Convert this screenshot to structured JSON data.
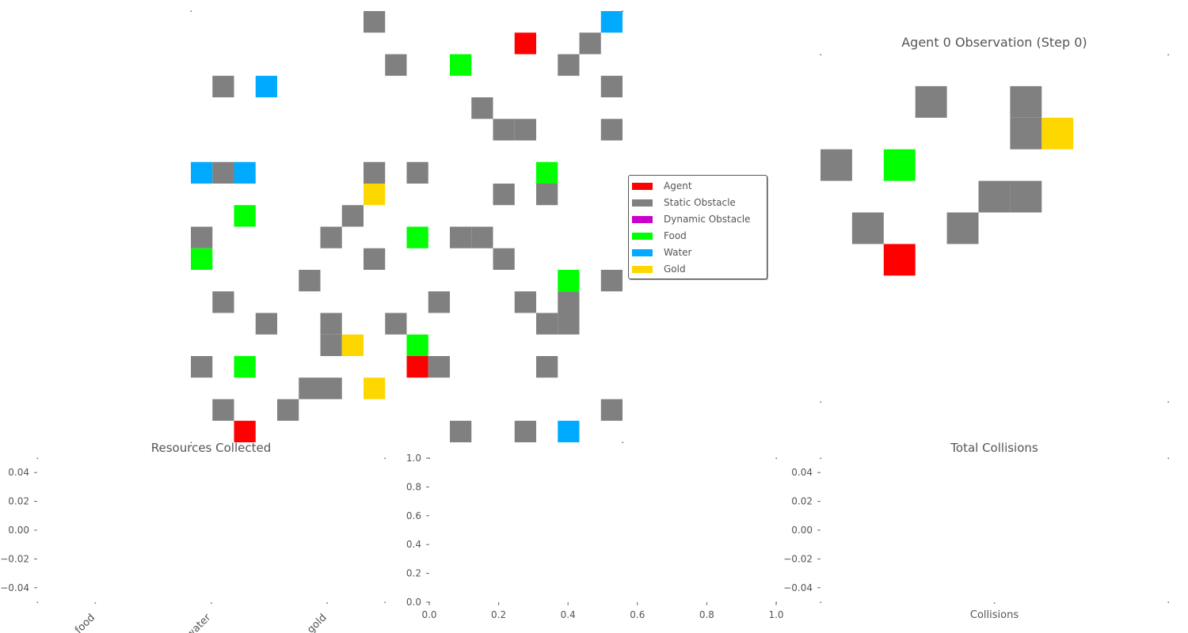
{
  "colors": {
    "agent": "#ff0000",
    "static_obstacle": "#808080",
    "dynamic_obstacle": "#cc00cc",
    "food": "#00ff00",
    "water": "#00aaff",
    "gold": "#ffd700",
    "text": "#555555",
    "tick": "#666666"
  },
  "legend": {
    "items": [
      {
        "label": "Agent",
        "color": "#ff0000"
      },
      {
        "label": "Static Obstacle",
        "color": "#808080"
      },
      {
        "label": "Dynamic Obstacle",
        "color": "#cc00cc"
      },
      {
        "label": "Food",
        "color": "#00ff00"
      },
      {
        "label": "Water",
        "color": "#00aaff"
      },
      {
        "label": "Gold",
        "color": "#ffd700"
      }
    ]
  },
  "chart_data": [
    {
      "type": "heatmap",
      "panel": "environment-grid",
      "title": "",
      "grid_size": [
        20,
        20
      ],
      "axes_visible": false,
      "cells": [
        {
          "r": 0,
          "c": 8,
          "k": "static_obstacle"
        },
        {
          "r": 0,
          "c": 19,
          "k": "water"
        },
        {
          "r": 1,
          "c": 15,
          "k": "agent"
        },
        {
          "r": 1,
          "c": 18,
          "k": "static_obstacle"
        },
        {
          "r": 2,
          "c": 9,
          "k": "static_obstacle"
        },
        {
          "r": 2,
          "c": 12,
          "k": "food"
        },
        {
          "r": 2,
          "c": 17,
          "k": "static_obstacle"
        },
        {
          "r": 3,
          "c": 1,
          "k": "static_obstacle"
        },
        {
          "r": 3,
          "c": 3,
          "k": "water"
        },
        {
          "r": 3,
          "c": 19,
          "k": "static_obstacle"
        },
        {
          "r": 4,
          "c": 13,
          "k": "static_obstacle"
        },
        {
          "r": 5,
          "c": 14,
          "k": "static_obstacle"
        },
        {
          "r": 5,
          "c": 15,
          "k": "static_obstacle"
        },
        {
          "r": 5,
          "c": 19,
          "k": "static_obstacle"
        },
        {
          "r": 7,
          "c": 0,
          "k": "water"
        },
        {
          "r": 7,
          "c": 1,
          "k": "static_obstacle"
        },
        {
          "r": 7,
          "c": 2,
          "k": "water"
        },
        {
          "r": 7,
          "c": 8,
          "k": "static_obstacle"
        },
        {
          "r": 7,
          "c": 10,
          "k": "static_obstacle"
        },
        {
          "r": 7,
          "c": 16,
          "k": "food"
        },
        {
          "r": 8,
          "c": 8,
          "k": "gold"
        },
        {
          "r": 8,
          "c": 14,
          "k": "static_obstacle"
        },
        {
          "r": 8,
          "c": 16,
          "k": "static_obstacle"
        },
        {
          "r": 9,
          "c": 2,
          "k": "food"
        },
        {
          "r": 9,
          "c": 7,
          "k": "static_obstacle"
        },
        {
          "r": 10,
          "c": 0,
          "k": "static_obstacle"
        },
        {
          "r": 10,
          "c": 6,
          "k": "static_obstacle"
        },
        {
          "r": 10,
          "c": 10,
          "k": "food"
        },
        {
          "r": 10,
          "c": 12,
          "k": "static_obstacle"
        },
        {
          "r": 10,
          "c": 13,
          "k": "static_obstacle"
        },
        {
          "r": 11,
          "c": 0,
          "k": "food"
        },
        {
          "r": 11,
          "c": 8,
          "k": "static_obstacle"
        },
        {
          "r": 11,
          "c": 14,
          "k": "static_obstacle"
        },
        {
          "r": 12,
          "c": 5,
          "k": "static_obstacle"
        },
        {
          "r": 12,
          "c": 17,
          "k": "food"
        },
        {
          "r": 12,
          "c": 19,
          "k": "static_obstacle"
        },
        {
          "r": 13,
          "c": 1,
          "k": "static_obstacle"
        },
        {
          "r": 13,
          "c": 11,
          "k": "static_obstacle"
        },
        {
          "r": 13,
          "c": 15,
          "k": "static_obstacle"
        },
        {
          "r": 13,
          "c": 17,
          "k": "static_obstacle"
        },
        {
          "r": 14,
          "c": 3,
          "k": "static_obstacle"
        },
        {
          "r": 14,
          "c": 6,
          "k": "static_obstacle"
        },
        {
          "r": 14,
          "c": 9,
          "k": "static_obstacle"
        },
        {
          "r": 14,
          "c": 16,
          "k": "static_obstacle"
        },
        {
          "r": 14,
          "c": 17,
          "k": "static_obstacle"
        },
        {
          "r": 15,
          "c": 6,
          "k": "static_obstacle"
        },
        {
          "r": 15,
          "c": 7,
          "k": "gold"
        },
        {
          "r": 15,
          "c": 10,
          "k": "food"
        },
        {
          "r": 16,
          "c": 0,
          "k": "static_obstacle"
        },
        {
          "r": 16,
          "c": 2,
          "k": "food"
        },
        {
          "r": 16,
          "c": 10,
          "k": "agent"
        },
        {
          "r": 16,
          "c": 11,
          "k": "static_obstacle"
        },
        {
          "r": 16,
          "c": 16,
          "k": "static_obstacle"
        },
        {
          "r": 17,
          "c": 5,
          "k": "static_obstacle"
        },
        {
          "r": 17,
          "c": 6,
          "k": "static_obstacle"
        },
        {
          "r": 17,
          "c": 8,
          "k": "gold"
        },
        {
          "r": 18,
          "c": 1,
          "k": "static_obstacle"
        },
        {
          "r": 18,
          "c": 4,
          "k": "static_obstacle"
        },
        {
          "r": 18,
          "c": 19,
          "k": "static_obstacle"
        },
        {
          "r": 19,
          "c": 2,
          "k": "agent"
        },
        {
          "r": 19,
          "c": 12,
          "k": "static_obstacle"
        },
        {
          "r": 19,
          "c": 15,
          "k": "static_obstacle"
        },
        {
          "r": 19,
          "c": 17,
          "k": "water"
        }
      ]
    },
    {
      "type": "heatmap",
      "panel": "agent-observation",
      "title": "Agent 0 Observation (Step 0)",
      "grid_size": [
        11,
        11
      ],
      "axes_visible": false,
      "cells": [
        {
          "r": 1,
          "c": 3,
          "k": "static_obstacle"
        },
        {
          "r": 1,
          "c": 6,
          "k": "static_obstacle"
        },
        {
          "r": 2,
          "c": 6,
          "k": "static_obstacle"
        },
        {
          "r": 2,
          "c": 7,
          "k": "gold"
        },
        {
          "r": 3,
          "c": 0,
          "k": "static_obstacle"
        },
        {
          "r": 3,
          "c": 2,
          "k": "food"
        },
        {
          "r": 4,
          "c": 5,
          "k": "static_obstacle"
        },
        {
          "r": 4,
          "c": 6,
          "k": "static_obstacle"
        },
        {
          "r": 5,
          "c": 1,
          "k": "static_obstacle"
        },
        {
          "r": 5,
          "c": 4,
          "k": "static_obstacle"
        },
        {
          "r": 6,
          "c": 2,
          "k": "agent"
        }
      ]
    },
    {
      "type": "bar",
      "panel": "resources-collected",
      "title": "Resources Collected",
      "categories": [
        "food",
        "water",
        "gold"
      ],
      "values": [
        0,
        0,
        0
      ],
      "ylim": [
        -0.05,
        0.05
      ],
      "yticks": [
        "0.04",
        "0.02",
        "0.00",
        "−0.02",
        "−0.04"
      ]
    },
    {
      "type": "line",
      "panel": "empty-axes",
      "title": "",
      "x": [],
      "y": [],
      "xlim": [
        0.0,
        1.0
      ],
      "ylim": [
        0.0,
        1.0
      ],
      "xticks": [
        "0.0",
        "0.2",
        "0.4",
        "0.6",
        "0.8",
        "1.0"
      ],
      "yticks": [
        "0.0",
        "0.2",
        "0.4",
        "0.6",
        "0.8",
        "1.0"
      ]
    },
    {
      "type": "bar",
      "panel": "total-collisions",
      "title": "Total Collisions",
      "categories": [
        "Collisions"
      ],
      "values": [
        0
      ],
      "ylim": [
        -0.05,
        0.05
      ],
      "yticks": [
        "0.04",
        "0.02",
        "0.00",
        "−0.02",
        "−0.04"
      ]
    }
  ]
}
